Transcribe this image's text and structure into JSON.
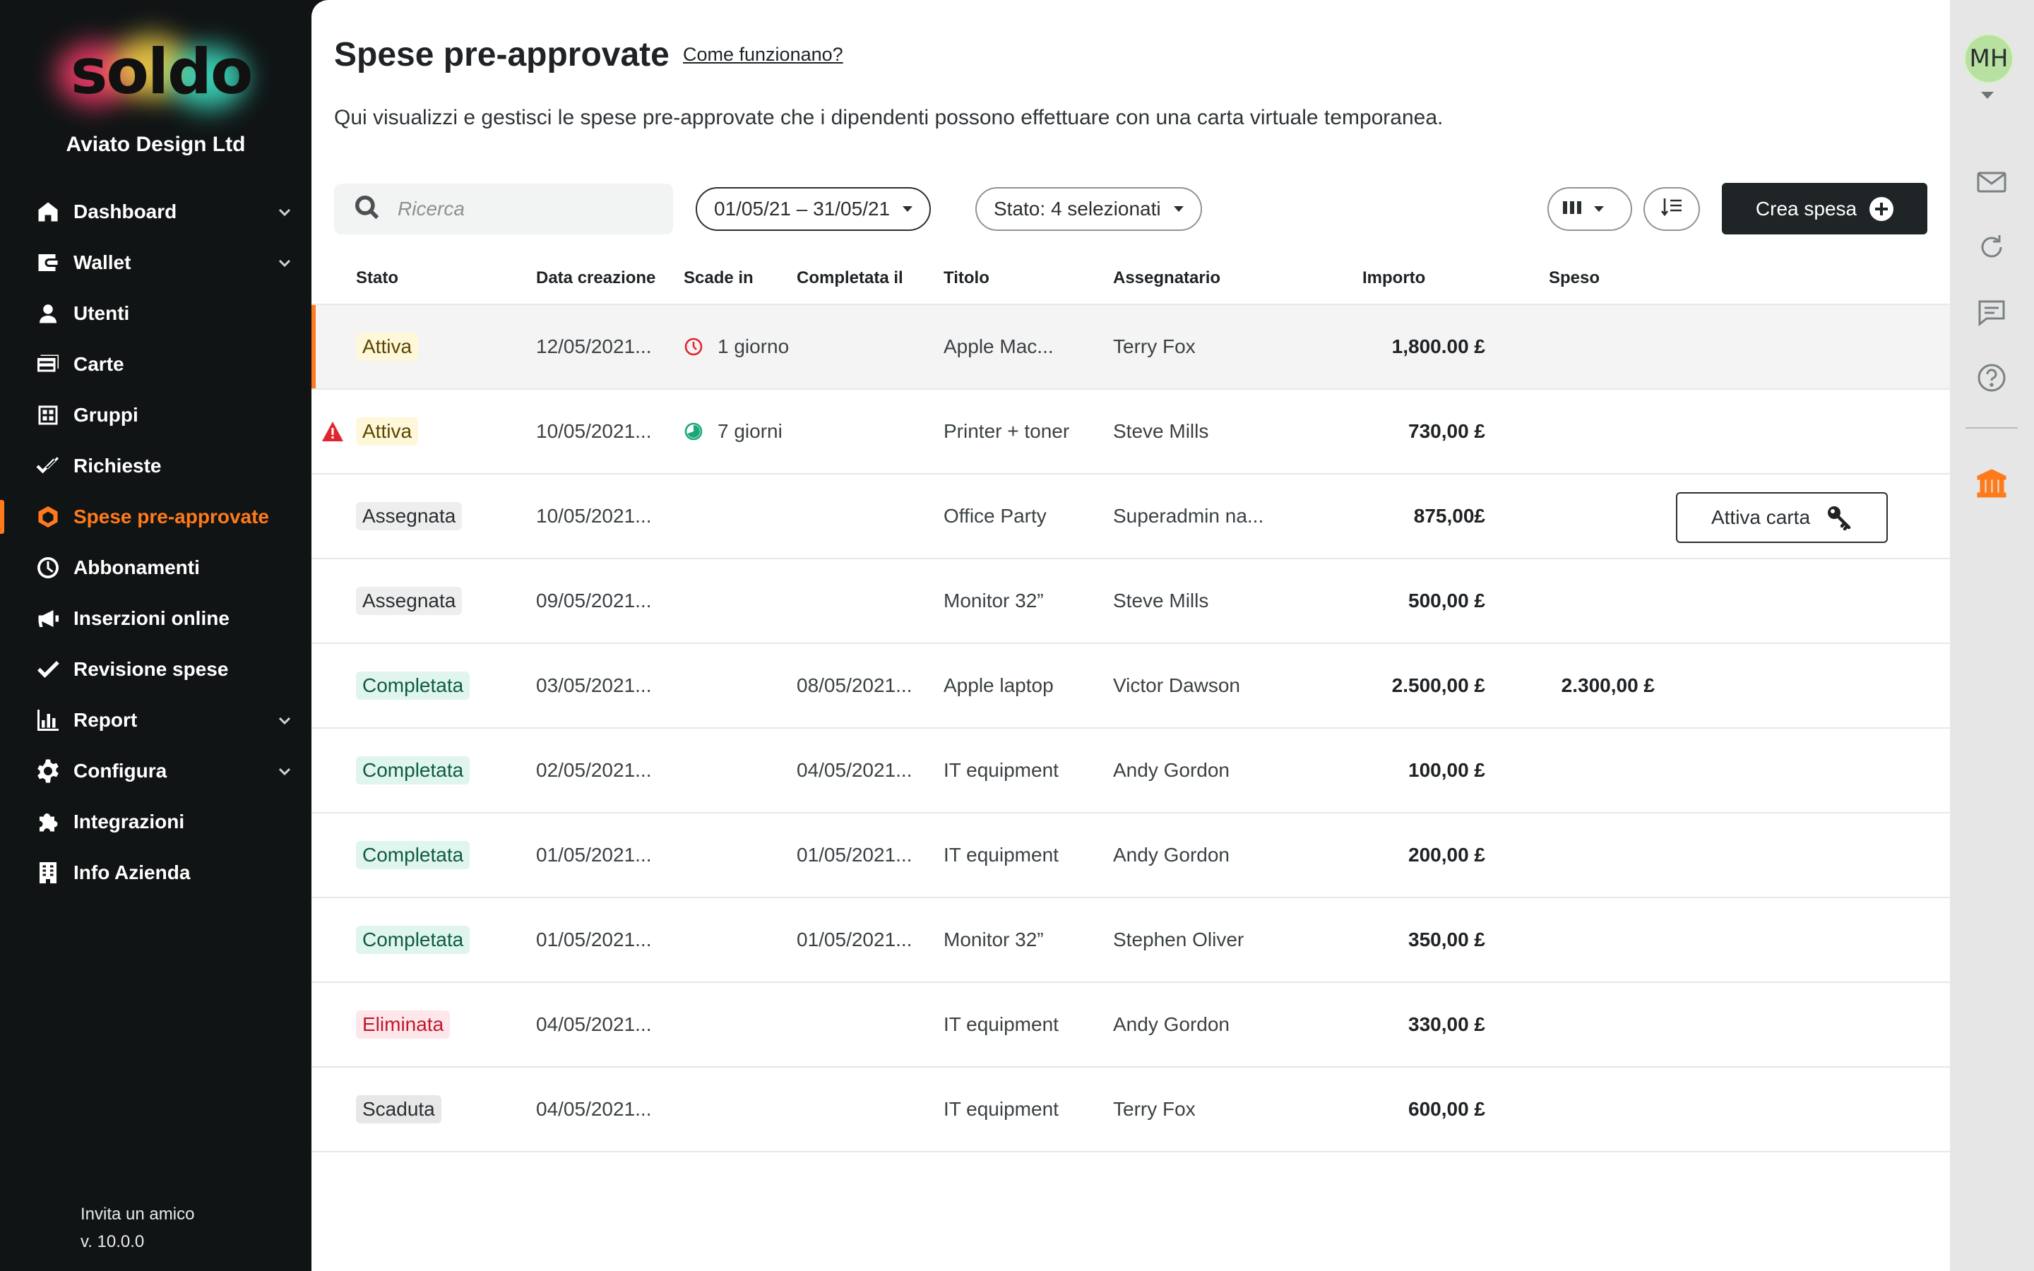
{
  "brand": {
    "logo_text": "soldo",
    "company": "Aviato Design Ltd"
  },
  "sidebar": {
    "items": [
      {
        "label": "Dashboard",
        "icon": "home-icon",
        "expandable": true
      },
      {
        "label": "Wallet",
        "icon": "wallet-icon",
        "expandable": true
      },
      {
        "label": "Utenti",
        "icon": "user-icon",
        "expandable": false
      },
      {
        "label": "Carte",
        "icon": "cards-icon",
        "expandable": false
      },
      {
        "label": "Gruppi",
        "icon": "groups-icon",
        "expandable": false
      },
      {
        "label": "Richieste",
        "icon": "double-check-icon",
        "expandable": false
      },
      {
        "label": "Spese pre-approvate",
        "icon": "hexagon-icon",
        "expandable": false,
        "active": true
      },
      {
        "label": "Abbonamenti",
        "icon": "clock-icon",
        "expandable": false
      },
      {
        "label": "Inserzioni online",
        "icon": "megaphone-icon",
        "expandable": false
      },
      {
        "label": "Revisione spese",
        "icon": "check-icon",
        "expandable": false
      },
      {
        "label": "Report",
        "icon": "bar-chart-icon",
        "expandable": true
      },
      {
        "label": "Configura",
        "icon": "gear-icon",
        "expandable": true
      },
      {
        "label": "Integrazioni",
        "icon": "puzzle-icon",
        "expandable": false
      },
      {
        "label": "Info Azienda",
        "icon": "building-icon",
        "expandable": false
      }
    ],
    "invite": "Invita un amico",
    "version": "v. 10.0.0"
  },
  "page": {
    "title": "Spese pre-approvate",
    "help_link": "Come funzionano?",
    "subtitle": "Qui visualizzi e gestisci le spese pre-approvate che i dipendenti possono effettuare con una carta virtuale temporanea."
  },
  "toolbar": {
    "search_placeholder": "Ricerca",
    "date_range": "01/05/21 – 31/05/21",
    "status_filter": "Stato: 4 selezionati",
    "create_label": "Crea spesa"
  },
  "table": {
    "columns": {
      "stato": "Stato",
      "data_creazione": "Data creazione",
      "scade_in": "Scade in",
      "completata_il": "Completata il",
      "titolo": "Titolo",
      "assegnatario": "Assegnatario",
      "importo": "Importo",
      "speso": "Speso"
    },
    "rows": [
      {
        "stato": "Attiva",
        "badge": "attiva",
        "warning": false,
        "data": "12/05/2021...",
        "scade": "1 giorno",
        "timer": "red",
        "completata": "",
        "titolo": "Apple Mac...",
        "assegnatario": "Terry Fox",
        "importo": "1,800.00 £",
        "speso": "",
        "selected": true
      },
      {
        "stato": "Attiva",
        "badge": "attiva",
        "warning": true,
        "data": "10/05/2021...",
        "scade": "7 giorni",
        "timer": "green",
        "completata": "",
        "titolo": "Printer + toner",
        "assegnatario": "Steve Mills",
        "importo": "730,00 £",
        "speso": ""
      },
      {
        "stato": "Assegnata",
        "badge": "assegnata",
        "data": "10/05/2021...",
        "scade": "",
        "completata": "",
        "titolo": "Office Party",
        "assegnatario": "Superadmin na...",
        "importo": "875,00£",
        "speso": "",
        "action": "Attiva carta"
      },
      {
        "stato": "Assegnata",
        "badge": "assegnata",
        "data": "09/05/2021...",
        "scade": "",
        "completata": "",
        "titolo": "Monitor 32”",
        "assegnatario": "Steve Mills",
        "importo": "500,00 £",
        "speso": ""
      },
      {
        "stato": "Completata",
        "badge": "completata",
        "data": "03/05/2021...",
        "scade": "",
        "completata": "08/05/2021...",
        "titolo": "Apple laptop",
        "assegnatario": "Victor Dawson",
        "importo": "2.500,00 £",
        "speso": "2.300,00 £"
      },
      {
        "stato": "Completata",
        "badge": "completata",
        "data": "02/05/2021...",
        "scade": "",
        "completata": "04/05/2021...",
        "titolo": "IT equipment",
        "assegnatario": "Andy Gordon",
        "importo": "100,00 £",
        "speso": ""
      },
      {
        "stato": "Completata",
        "badge": "completata",
        "data": "01/05/2021...",
        "scade": "",
        "completata": "01/05/2021...",
        "titolo": "IT equipment",
        "assegnatario": "Andy Gordon",
        "importo": "200,00 £",
        "speso": ""
      },
      {
        "stato": "Completata",
        "badge": "completata",
        "data": "01/05/2021...",
        "scade": "",
        "completata": "01/05/2021...",
        "titolo": "Monitor 32”",
        "assegnatario": "Stephen Oliver",
        "importo": "350,00 £",
        "speso": ""
      },
      {
        "stato": "Eliminata",
        "badge": "eliminata",
        "data": "04/05/2021...",
        "scade": "",
        "completata": "",
        "titolo": "IT equipment",
        "assegnatario": "Andy Gordon",
        "importo": "330,00 £",
        "speso": ""
      },
      {
        "stato": "Scaduta",
        "badge": "scaduta",
        "data": "04/05/2021...",
        "scade": "",
        "completata": "",
        "titolo": "IT equipment",
        "assegnatario": "Terry Fox",
        "importo": "600,00 £",
        "speso": ""
      }
    ]
  },
  "rail": {
    "avatar_initials": "MH",
    "icons": [
      "mail-icon",
      "refresh-icon",
      "chat-icon",
      "help-icon",
      "bank-icon"
    ]
  },
  "colors": {
    "accent": "#ff7a1a",
    "sidebar_bg": "#101415",
    "primary_button": "#1f2427"
  }
}
